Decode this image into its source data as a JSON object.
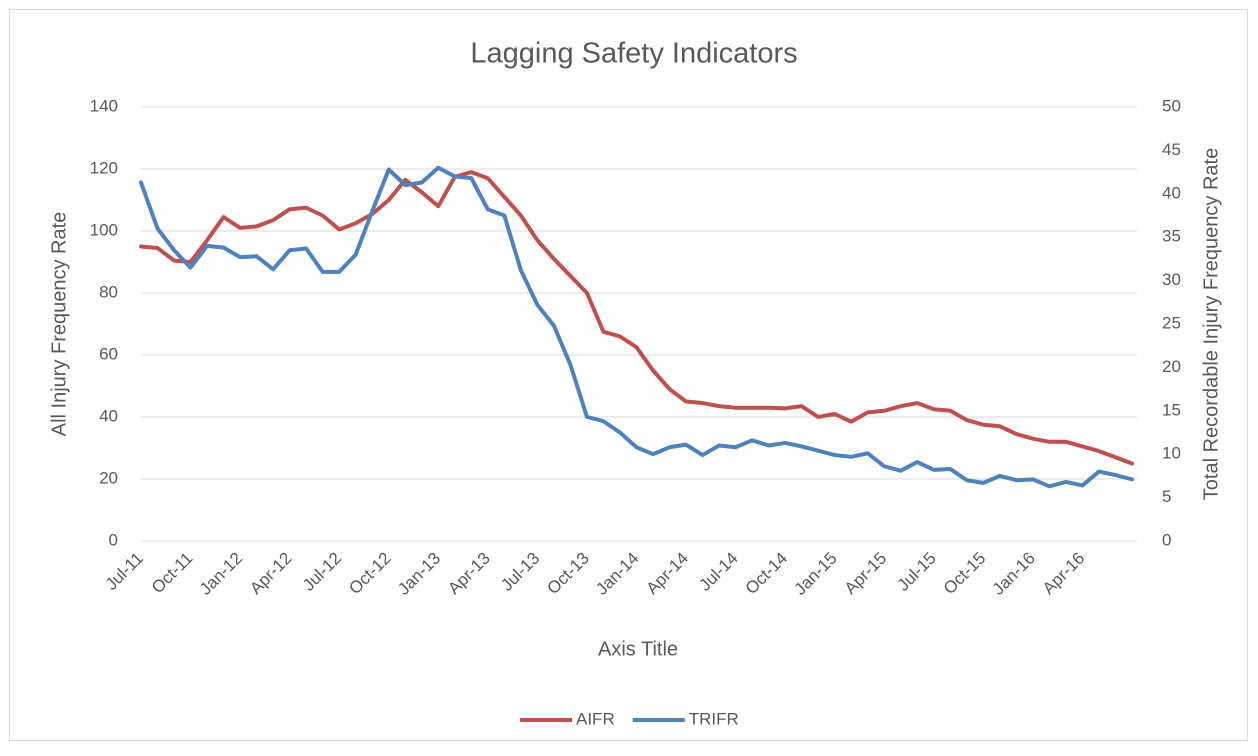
{
  "chart_data": {
    "type": "line",
    "title": "Lagging Safety Indicators",
    "x_label": "Axis Title",
    "y_label": "All Injury Frequency Rate",
    "y2_label": "Total Recordable Injury Frequency Rate",
    "categories": [
      "Jul-11",
      null,
      null,
      "Oct-11",
      null,
      null,
      "Jan-12",
      null,
      null,
      "Apr-12",
      null,
      null,
      "Jul-12",
      null,
      null,
      "Oct-12",
      null,
      null,
      "Jan-13",
      null,
      null,
      "Apr-13",
      null,
      null,
      "Jul-13",
      null,
      null,
      "Oct-13",
      null,
      null,
      "Jan-14",
      null,
      null,
      "Apr-14",
      null,
      null,
      "Jul-14",
      null,
      null,
      "Oct-14",
      null,
      null,
      "Jan-15",
      null,
      null,
      "Apr-15",
      null,
      null,
      "Jul-15",
      null,
      null,
      "Oct-15",
      null,
      null,
      "Jan-16",
      null,
      null,
      "Apr-16",
      null,
      null,
      null
    ],
    "series": [
      {
        "name": "AIFR",
        "color": "#c0504d",
        "axis": "y",
        "values": [
          95,
          94.5,
          90.5,
          90,
          97,
          104.5,
          101,
          101.5,
          103.5,
          107,
          107.5,
          105,
          100.5,
          102.5,
          105.5,
          110,
          116.5,
          112.5,
          108,
          117.5,
          119,
          117,
          111,
          105,
          97,
          91,
          85.5,
          80,
          67.5,
          66,
          62.5,
          55,
          49,
          45,
          44.5,
          43.5,
          43,
          43,
          43,
          42.8,
          43.5,
          40,
          41,
          38.5,
          41.5,
          42,
          43.5,
          44.5,
          42.5,
          42,
          39,
          37.5,
          37,
          34.5,
          33,
          32,
          32,
          30.5,
          29,
          27,
          25
        ]
      },
      {
        "name": "TRIFR",
        "color": "#4f81bd",
        "axis": "y2",
        "values": [
          41.3,
          36,
          33.5,
          31.5,
          34,
          33.8,
          32.7,
          32.8,
          31.3,
          33.5,
          33.7,
          31,
          31,
          33,
          38,
          42.8,
          41,
          41.3,
          43,
          42,
          41.8,
          38.2,
          37.5,
          31.2,
          27.2,
          24.8,
          20.3,
          14.3,
          13.8,
          12.5,
          10.8,
          10,
          10.8,
          11.1,
          9.9,
          11,
          10.8,
          11.6,
          11,
          11.3,
          10.9,
          10.4,
          9.9,
          9.7,
          10.1,
          8.6,
          8.1,
          9.1,
          8.2,
          8.3,
          7,
          6.7,
          7.5,
          7,
          7.1,
          6.3,
          6.8,
          6.4,
          8,
          7.6,
          7.1
        ]
      }
    ],
    "ylim": [
      0,
      140
    ],
    "yticks": [
      0,
      20,
      40,
      60,
      80,
      100,
      120,
      140
    ],
    "y2lim": [
      0,
      50
    ],
    "y2ticks": [
      0,
      5,
      10,
      15,
      20,
      25,
      30,
      35,
      40,
      45,
      50
    ],
    "grid": true,
    "legend": "bottom"
  }
}
